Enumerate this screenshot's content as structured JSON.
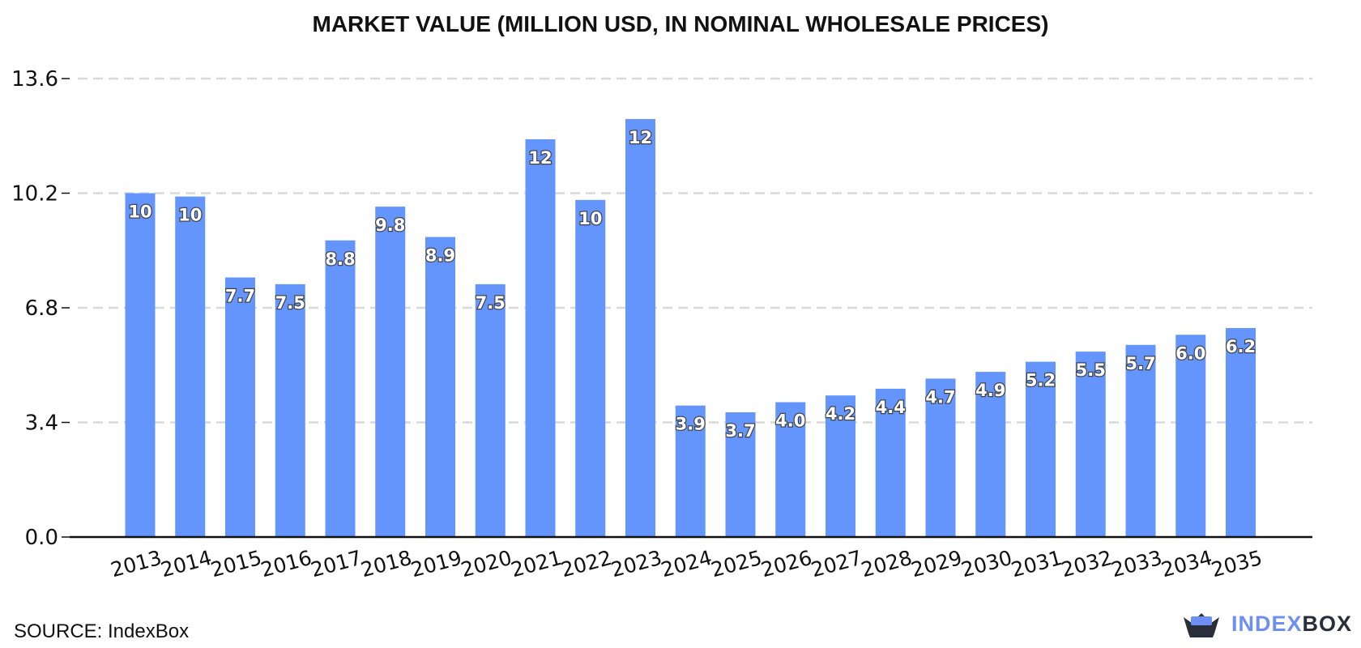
{
  "chart_data": {
    "type": "bar",
    "title": "MARKET VALUE (MILLION USD, IN NOMINAL WHOLESALE PRICES)",
    "categories": [
      "2013",
      "2014",
      "2015",
      "2016",
      "2017",
      "2018",
      "2019",
      "2020",
      "2021",
      "2022",
      "2023",
      "2024",
      "2025",
      "2026",
      "2027",
      "2028",
      "2029",
      "2030",
      "2031",
      "2032",
      "2033",
      "2034",
      "2035"
    ],
    "values": [
      10.2,
      10.1,
      7.7,
      7.5,
      8.8,
      9.8,
      8.9,
      7.5,
      11.8,
      10.0,
      12.4,
      3.9,
      3.7,
      4.0,
      4.2,
      4.4,
      4.7,
      4.9,
      5.2,
      5.5,
      5.7,
      6.0,
      6.2
    ],
    "data_labels": [
      "10",
      "10",
      "7.7",
      "7.5",
      "8.8",
      "9.8",
      "8.9",
      "7.5",
      "12",
      "10",
      "12",
      "3.9",
      "3.7",
      "4.0",
      "4.2",
      "4.4",
      "4.7",
      "4.9",
      "5.2",
      "5.5",
      "5.7",
      "6.0",
      "6.2"
    ],
    "y_ticks": [
      "0.0",
      "3.4",
      "6.8",
      "10.2",
      "13.6"
    ],
    "ylim": [
      0,
      13.6
    ],
    "grid": true,
    "bar_color": "#6495fc",
    "xlabel": "",
    "ylabel": ""
  },
  "source": "SOURCE: IndexBox",
  "logo": {
    "part1": "INDEX",
    "part2": "BOX"
  }
}
